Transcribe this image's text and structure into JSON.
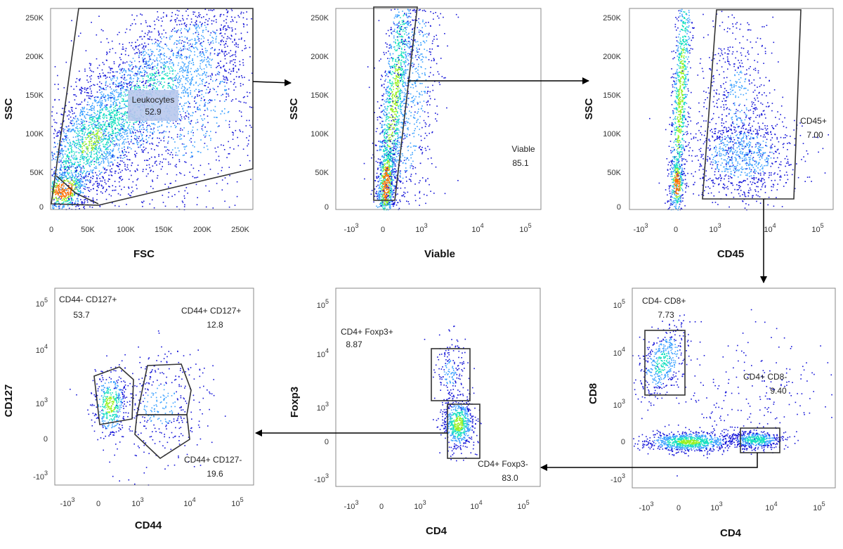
{
  "colors": {
    "density_low": "#1414d8",
    "density_mid": "#3aa0ff",
    "density_high1": "#18e0c0",
    "density_high2": "#9af020",
    "density_peak": "#ff7000",
    "gate": "#333333",
    "arrow": "#000000",
    "frame": "#888888"
  },
  "panels": [
    {
      "id": "p1",
      "xlabel": "FSC",
      "ylabel": "SSC",
      "xticks": [
        "0",
        "50K",
        "100K",
        "150K",
        "200K",
        "250K"
      ],
      "yticks": [
        "0",
        "50K",
        "100K",
        "150K",
        "200K",
        "250K"
      ],
      "gates": [
        {
          "name": "Leukocytes",
          "value": "52.9",
          "highlight": true
        }
      ]
    },
    {
      "id": "p2",
      "xlabel": "Viable",
      "ylabel": "SSC",
      "xticks": [
        "-10",
        "0",
        "10",
        "10",
        "10"
      ],
      "xsup": [
        "3",
        "",
        "3",
        "4",
        "5"
      ],
      "yticks": [
        "0",
        "50K",
        "100K",
        "150K",
        "200K",
        "250K"
      ],
      "gates": [
        {
          "name": "Viable",
          "value": "85.1"
        }
      ]
    },
    {
      "id": "p3",
      "xlabel": "CD45",
      "ylabel": "SSC",
      "xticks": [
        "-10",
        "0",
        "10",
        "10",
        "10"
      ],
      "xsup": [
        "3",
        "",
        "3",
        "4",
        "5"
      ],
      "yticks": [
        "0",
        "50K",
        "100K",
        "150K",
        "200K",
        "250K"
      ],
      "gates": [
        {
          "name": "CD45+",
          "value": "7.00"
        }
      ]
    },
    {
      "id": "p4",
      "xlabel": "CD44",
      "ylabel": "CD127",
      "xticks": [
        "-10",
        "0",
        "10",
        "10",
        "10"
      ],
      "xsup": [
        "3",
        "",
        "3",
        "4",
        "5"
      ],
      "yticks": [
        "-10",
        "0",
        "10",
        "10",
        "10"
      ],
      "ysup": [
        "3",
        "",
        "3",
        "4",
        "5"
      ],
      "gates": [
        {
          "name": "CD44- CD127+",
          "value": "53.7"
        },
        {
          "name": "CD44+ CD127+",
          "value": "12.8"
        },
        {
          "name": "CD44+ CD127-",
          "value": "19.6"
        }
      ]
    },
    {
      "id": "p5",
      "xlabel": "CD4",
      "ylabel": "Foxp3",
      "xticks": [
        "-10",
        "0",
        "10",
        "10",
        "10"
      ],
      "xsup": [
        "3",
        "",
        "3",
        "4",
        "5"
      ],
      "yticks": [
        "-10",
        "0",
        "10",
        "10",
        "10"
      ],
      "ysup": [
        "3",
        "",
        "3",
        "4",
        "5"
      ],
      "gates": [
        {
          "name": "CD4+ Foxp3+",
          "value": "8.87"
        },
        {
          "name": "CD4+ Foxp3-",
          "value": "83.0"
        }
      ]
    },
    {
      "id": "p6",
      "xlabel": "CD4",
      "ylabel": "CD8",
      "xticks": [
        "-10",
        "0",
        "10",
        "10",
        "10"
      ],
      "xsup": [
        "3",
        "",
        "3",
        "4",
        "5"
      ],
      "yticks": [
        "-10",
        "0",
        "10",
        "10",
        "10"
      ],
      "ysup": [
        "3",
        "",
        "3",
        "4",
        "5"
      ],
      "gates": [
        {
          "name": "CD4- CD8+",
          "value": "7.73"
        },
        {
          "name": "CD4+ CD8-",
          "value": "9.40"
        }
      ]
    }
  ]
}
